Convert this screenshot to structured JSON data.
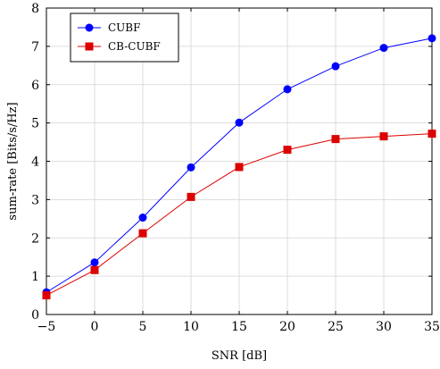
{
  "chart_data": {
    "type": "line",
    "title": "",
    "xlabel": "SNR [dB]",
    "ylabel": "sum-rate [Bits/s/Hz]",
    "xlim": [
      -5,
      35
    ],
    "ylim": [
      0,
      8
    ],
    "xticks": [
      -5,
      0,
      5,
      10,
      15,
      20,
      25,
      30,
      35
    ],
    "yticks": [
      0,
      1,
      2,
      3,
      4,
      5,
      6,
      7,
      8
    ],
    "grid": true,
    "legend_position": "top-left",
    "x": [
      -5,
      0,
      5,
      10,
      15,
      20,
      25,
      30,
      35
    ],
    "series": [
      {
        "name": "CUBF",
        "color": "#0000ff",
        "marker": "circle",
        "values": [
          0.58,
          1.36,
          2.53,
          3.84,
          5.01,
          5.88,
          6.48,
          6.96,
          7.21
        ]
      },
      {
        "name": "CB-CUBF",
        "color": "#dd0000",
        "marker": "square",
        "values": [
          0.5,
          1.16,
          2.12,
          3.07,
          3.85,
          4.3,
          4.58,
          4.65,
          4.72
        ]
      }
    ]
  }
}
